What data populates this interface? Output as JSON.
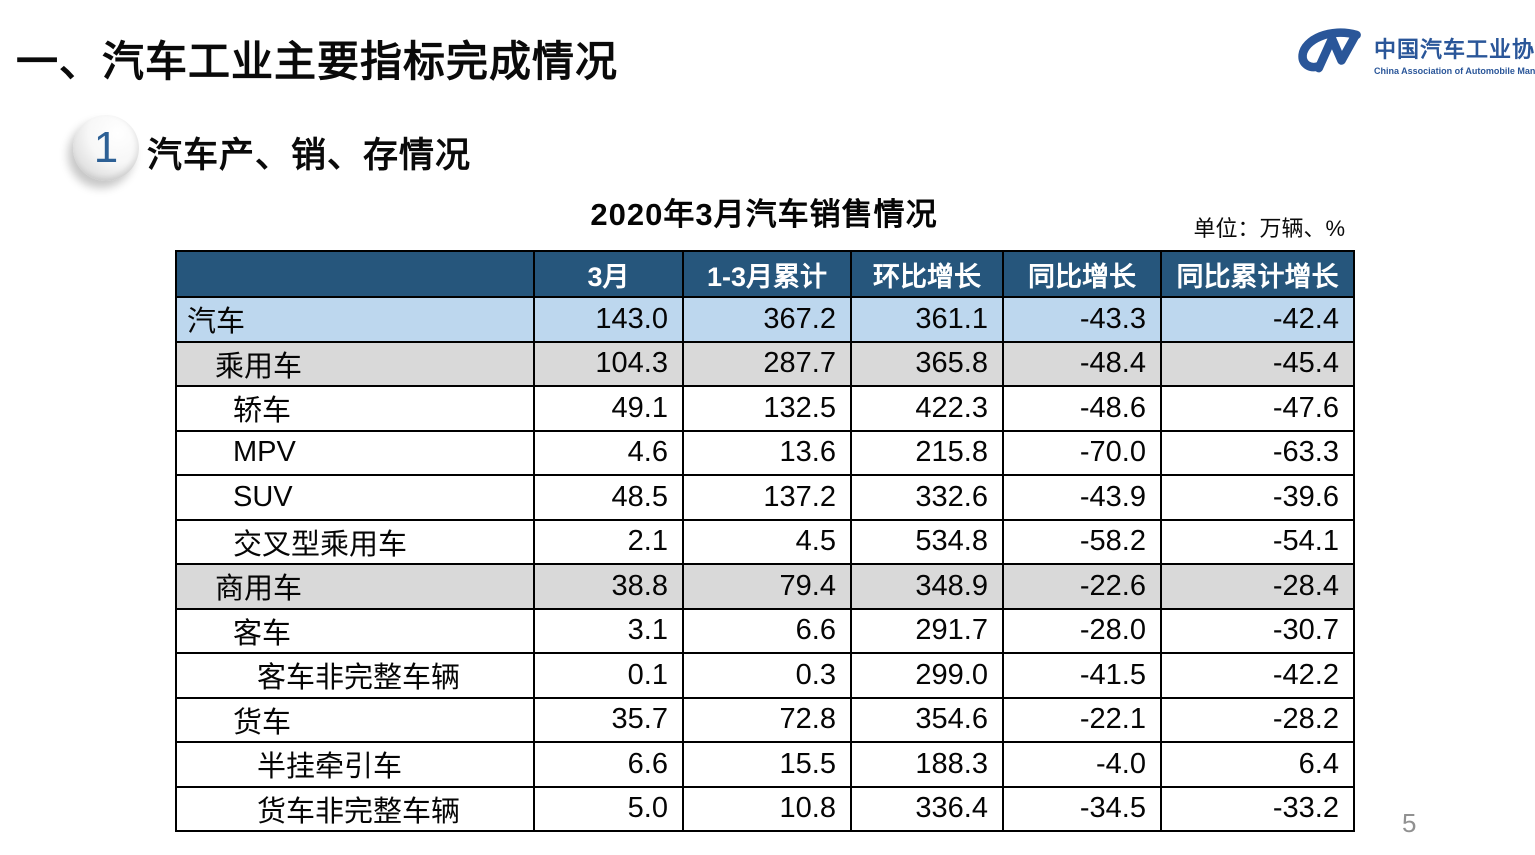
{
  "slide": {
    "title": "一、汽车工业主要指标完成情况",
    "page_number": "5"
  },
  "logo": {
    "icon": "cam-swoosh-logo",
    "name_cn": "中国汽车工业协会",
    "name_en": "China Association of Automobile Manufacturers",
    "brand_color": "#2a5699"
  },
  "section": {
    "badge_number": "1",
    "heading": "汽车产、销、存情况"
  },
  "table": {
    "title": "2020年3月汽车销售情况",
    "unit_note": "单位：万辆、%",
    "columns": [
      "",
      "3月",
      "1-3月累计",
      "环比增长",
      "同比增长",
      "同比累计增长"
    ],
    "rows": [
      {
        "label": "汽车",
        "indent": 0,
        "style": "blue",
        "values": [
          "143.0",
          "367.2",
          "361.1",
          "-43.3",
          "-42.4"
        ]
      },
      {
        "label": "乘用车",
        "indent": 1,
        "style": "gray",
        "values": [
          "104.3",
          "287.7",
          "365.8",
          "-48.4",
          "-45.4"
        ]
      },
      {
        "label": "轿车",
        "indent": 2,
        "style": "white",
        "values": [
          "49.1",
          "132.5",
          "422.3",
          "-48.6",
          "-47.6"
        ]
      },
      {
        "label": "MPV",
        "indent": 2,
        "style": "white",
        "values": [
          "4.6",
          "13.6",
          "215.8",
          "-70.0",
          "-63.3"
        ]
      },
      {
        "label": "SUV",
        "indent": 2,
        "style": "white",
        "values": [
          "48.5",
          "137.2",
          "332.6",
          "-43.9",
          "-39.6"
        ]
      },
      {
        "label": "交叉型乘用车",
        "indent": 2,
        "style": "white",
        "values": [
          "2.1",
          "4.5",
          "534.8",
          "-58.2",
          "-54.1"
        ]
      },
      {
        "label": "商用车",
        "indent": 1,
        "style": "gray",
        "values": [
          "38.8",
          "79.4",
          "348.9",
          "-22.6",
          "-28.4"
        ]
      },
      {
        "label": "客车",
        "indent": 2,
        "style": "white",
        "values": [
          "3.1",
          "6.6",
          "291.7",
          "-28.0",
          "-30.7"
        ]
      },
      {
        "label": "客车非完整车辆",
        "indent": 3,
        "style": "white",
        "values": [
          "0.1",
          "0.3",
          "299.0",
          "-41.5",
          "-42.2"
        ]
      },
      {
        "label": "货车",
        "indent": 2,
        "style": "white",
        "values": [
          "35.7",
          "72.8",
          "354.6",
          "-22.1",
          "-28.2"
        ]
      },
      {
        "label": "半挂牵引车",
        "indent": 3,
        "style": "white",
        "values": [
          "6.6",
          "15.5",
          "188.3",
          "-4.0",
          "6.4"
        ]
      },
      {
        "label": "货车非完整车辆",
        "indent": 3,
        "style": "white",
        "values": [
          "5.0",
          "10.8",
          "336.4",
          "-34.5",
          "-33.2"
        ]
      }
    ],
    "colors": {
      "header_bg": "#26567c",
      "header_text": "#ffffff",
      "row_highlight_blue": "#bdd7ee",
      "row_highlight_gray": "#d9d9d9",
      "grid_border": "#000000"
    }
  },
  "chart_data": {
    "type": "table",
    "title": "2020年3月汽车销售情况",
    "unit": "万辆、%",
    "columns": [
      "3月",
      "1-3月累计",
      "环比增长",
      "同比增长",
      "同比累计增长"
    ],
    "rows": [
      {
        "category": "汽车",
        "values": [
          143.0,
          367.2,
          361.1,
          -43.3,
          -42.4
        ]
      },
      {
        "category": "乘用车",
        "values": [
          104.3,
          287.7,
          365.8,
          -48.4,
          -45.4
        ]
      },
      {
        "category": "轿车",
        "values": [
          49.1,
          132.5,
          422.3,
          -48.6,
          -47.6
        ]
      },
      {
        "category": "MPV",
        "values": [
          4.6,
          13.6,
          215.8,
          -70.0,
          -63.3
        ]
      },
      {
        "category": "SUV",
        "values": [
          48.5,
          137.2,
          332.6,
          -43.9,
          -39.6
        ]
      },
      {
        "category": "交叉型乘用车",
        "values": [
          2.1,
          4.5,
          534.8,
          -58.2,
          -54.1
        ]
      },
      {
        "category": "商用车",
        "values": [
          38.8,
          79.4,
          348.9,
          -22.6,
          -28.4
        ]
      },
      {
        "category": "客车",
        "values": [
          3.1,
          6.6,
          291.7,
          -28.0,
          -30.7
        ]
      },
      {
        "category": "客车非完整车辆",
        "values": [
          0.1,
          0.3,
          299.0,
          -41.5,
          -42.2
        ]
      },
      {
        "category": "货车",
        "values": [
          35.7,
          72.8,
          354.6,
          -22.1,
          -28.2
        ]
      },
      {
        "category": "半挂牵引车",
        "values": [
          6.6,
          15.5,
          188.3,
          -4.0,
          6.4
        ]
      },
      {
        "category": "货车非完整车辆",
        "values": [
          5.0,
          10.8,
          336.4,
          -34.5,
          -33.2
        ]
      }
    ]
  }
}
